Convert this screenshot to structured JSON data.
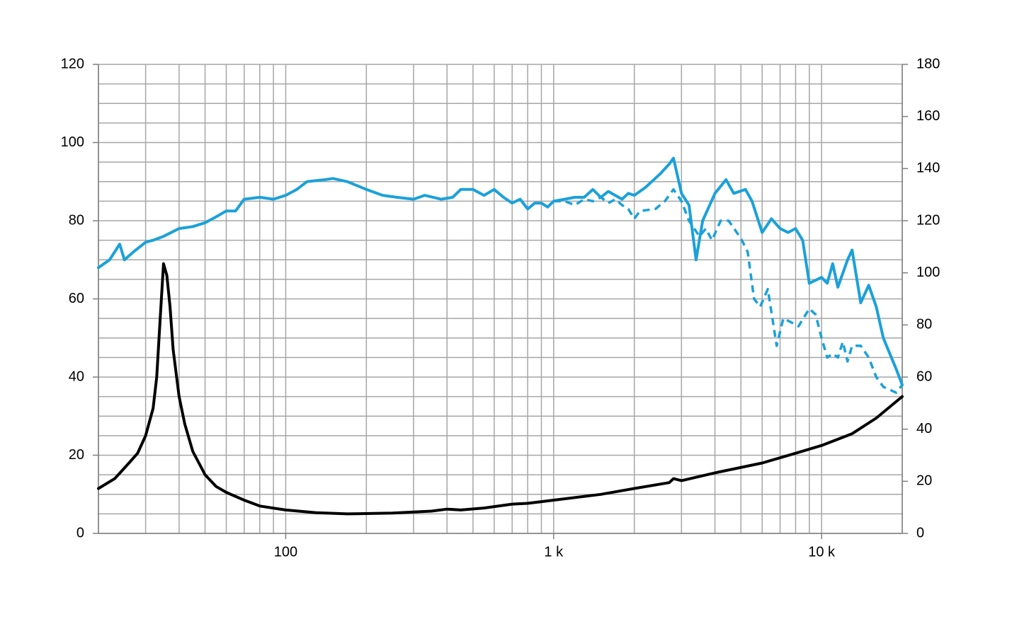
{
  "chart_data": {
    "type": "line",
    "xscale": "log",
    "xlim": [
      20,
      20000
    ],
    "ylim": [
      0,
      120
    ],
    "y2lim": [
      0,
      180
    ],
    "xticks": [
      100,
      {
        "value": 1000,
        "label": "1 k"
      },
      {
        "value": 10000,
        "label": "10 k"
      }
    ],
    "yticks": [
      0,
      20,
      40,
      60,
      80,
      100,
      120
    ],
    "y2ticks": [
      0,
      20,
      40,
      60,
      80,
      100,
      120,
      140,
      160,
      180
    ],
    "xgrid": [
      20,
      30,
      40,
      50,
      60,
      70,
      80,
      90,
      100,
      200,
      300,
      400,
      500,
      600,
      700,
      800,
      900,
      1000,
      2000,
      3000,
      4000,
      5000,
      6000,
      7000,
      8000,
      9000,
      10000,
      20000
    ],
    "ygrid": [
      0,
      5,
      10,
      15,
      20,
      25,
      30,
      35,
      40,
      45,
      50,
      55,
      60,
      65,
      70,
      75,
      80,
      85,
      90,
      95,
      100,
      105,
      110,
      115,
      120
    ],
    "grid": true,
    "series": [
      {
        "color": "#1ba1d9",
        "dash": false,
        "x": [
          20,
          22,
          24,
          25,
          27,
          30,
          32,
          35,
          40,
          45,
          50,
          55,
          60,
          65,
          70,
          80,
          90,
          100,
          110,
          120,
          140,
          150,
          170,
          200,
          230,
          260,
          300,
          330,
          380,
          420,
          450,
          500,
          550,
          600,
          650,
          700,
          750,
          800,
          850,
          900,
          950,
          1000,
          1100,
          1200,
          1300,
          1400,
          1500,
          1600,
          1800,
          1900,
          2000,
          2200,
          2500,
          2700,
          2800,
          3000,
          3200,
          3400,
          3600,
          4000,
          4400,
          4700,
          5200,
          5500,
          6000,
          6500,
          7000,
          7500,
          8000,
          8500,
          9000,
          10000,
          10500,
          11000,
          11500,
          12500,
          13000,
          14000,
          15000,
          16000,
          17000,
          19000,
          20000
        ],
        "values": [
          68,
          70,
          74,
          70,
          72,
          74.5,
          75,
          76,
          78,
          78.5,
          79.5,
          81,
          82.5,
          82.5,
          85.5,
          86,
          85.5,
          86.5,
          88,
          90,
          90.5,
          90.8,
          90,
          88,
          86.5,
          86,
          85.5,
          86.5,
          85.5,
          86,
          88,
          88,
          86.5,
          88,
          86,
          84.5,
          85.5,
          83,
          84.5,
          84.5,
          83.5,
          85,
          85.5,
          86,
          86,
          88,
          86,
          87.5,
          85.5,
          87,
          86.5,
          88.5,
          92,
          94.5,
          96,
          87,
          84,
          70,
          80,
          87,
          90.5,
          87,
          88,
          85,
          77,
          80.5,
          78,
          77,
          78,
          75,
          64,
          65.5,
          64,
          69,
          63,
          70,
          72.5,
          59,
          63.5,
          58,
          50,
          42,
          38
        ]
      },
      {
        "color": "#1ba1d9",
        "dash": true,
        "x": [
          1000,
          1100,
          1200,
          1300,
          1400,
          1500,
          1600,
          1700,
          1800,
          1900,
          2000,
          2100,
          2400,
          2600,
          2800,
          3000,
          3200,
          3500,
          3700,
          3900,
          4200,
          4500,
          5000,
          5300,
          5600,
          5900,
          6300,
          6800,
          7200,
          7700,
          8200,
          9000,
          9500,
          10000,
          10500,
          11000,
          11500,
          12000,
          12500,
          13000,
          14000,
          15000,
          16000,
          17000,
          19000,
          20000
        ],
        "values": [
          85,
          85,
          84,
          85.5,
          85,
          86,
          84.5,
          85.5,
          84,
          83,
          80.5,
          82.5,
          83,
          85,
          88,
          85,
          80,
          76,
          78,
          75,
          80,
          80,
          75.5,
          72,
          60,
          58,
          62.5,
          48,
          55,
          54,
          53,
          57.5,
          56,
          50,
          45,
          46,
          45,
          49,
          44,
          48,
          48,
          45,
          40,
          37.5,
          36,
          38
        ]
      },
      {
        "color": "#000000",
        "dash": false,
        "axis": "y2",
        "x": [
          20,
          23,
          26,
          28,
          30,
          32,
          33,
          34,
          35,
          36,
          37,
          38,
          40,
          42,
          45,
          50,
          55,
          60,
          70,
          80,
          100,
          130,
          170,
          250,
          350,
          400,
          450,
          550,
          700,
          800,
          1000,
          1500,
          2000,
          2700,
          2800,
          3000,
          4000,
          6000,
          8000,
          10000,
          13000,
          16000,
          20000
        ],
        "values": [
          17.25,
          21,
          27,
          30.75,
          37.5,
          48,
          60,
          82.5,
          103.5,
          99,
          87,
          70.5,
          52.5,
          42,
          31.5,
          22.5,
          18,
          15.75,
          12.75,
          10.5,
          9,
          7.95,
          7.5,
          7.8,
          8.55,
          9.3,
          9,
          9.75,
          11.25,
          11.55,
          12.75,
          15,
          17.25,
          19.5,
          21,
          20.25,
          23.25,
          27,
          30.75,
          33.75,
          38.25,
          44.25,
          52.5
        ]
      }
    ]
  }
}
